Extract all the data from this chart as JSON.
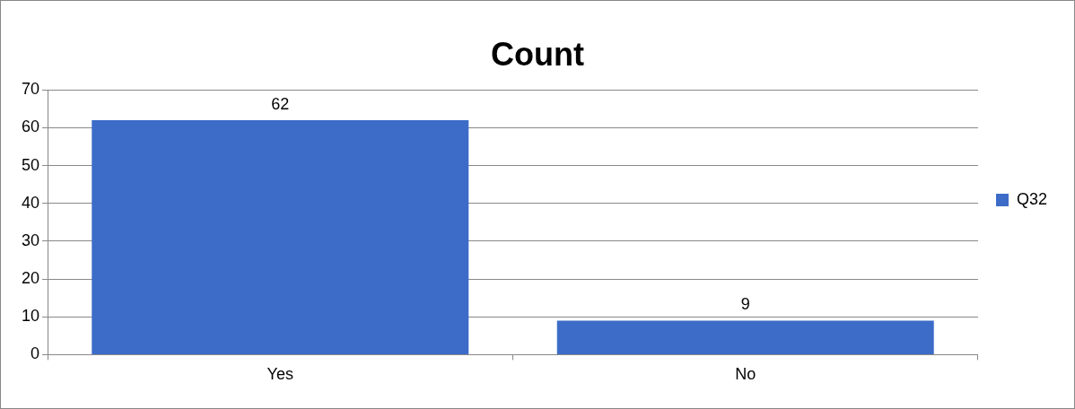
{
  "chart_data": {
    "type": "bar",
    "title": "Count",
    "categories": [
      "Yes",
      "No"
    ],
    "series": [
      {
        "name": "Q32",
        "color": "#3d6cc8",
        "values": [
          62,
          9
        ]
      }
    ],
    "ylim": [
      0,
      70
    ],
    "yticks": [
      0,
      10,
      20,
      30,
      40,
      50,
      60,
      70
    ],
    "grid": "y",
    "legend": "right",
    "data_labels": true
  }
}
